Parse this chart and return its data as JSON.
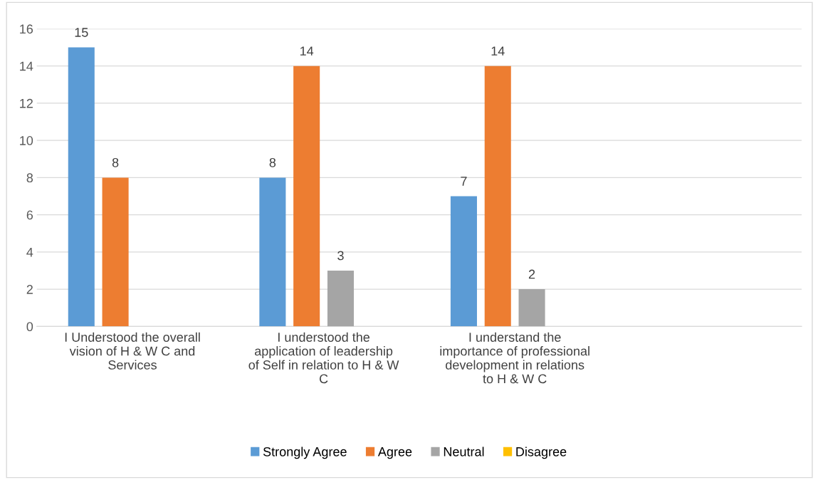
{
  "chart_data": {
    "type": "bar",
    "categories": [
      "I Understood the overall\nvision of H & W C and\nServices",
      "I understood the\napplication of leadership\nof Self in relation to H & W\nC",
      "I understand the\nimportance of professional\ndevelopment in relations\nto H & W C",
      null
    ],
    "series": [
      {
        "name": "Strongly Agree",
        "color": "#5b9bd5",
        "values": [
          15,
          8,
          7,
          null
        ]
      },
      {
        "name": "Agree",
        "color": "#ed7d31",
        "values": [
          8,
          14,
          14,
          null
        ]
      },
      {
        "name": "Neutral",
        "color": "#a5a5a5",
        "values": [
          null,
          3,
          2,
          null
        ]
      },
      {
        "name": "Disagree",
        "color": "#ffc000",
        "values": [
          null,
          null,
          null,
          null
        ]
      }
    ],
    "ylim": [
      0,
      16
    ],
    "yticks": [
      0,
      2,
      4,
      6,
      8,
      10,
      12,
      14,
      16
    ],
    "grid": "y",
    "legend": "bottom",
    "data_labels": true
  }
}
